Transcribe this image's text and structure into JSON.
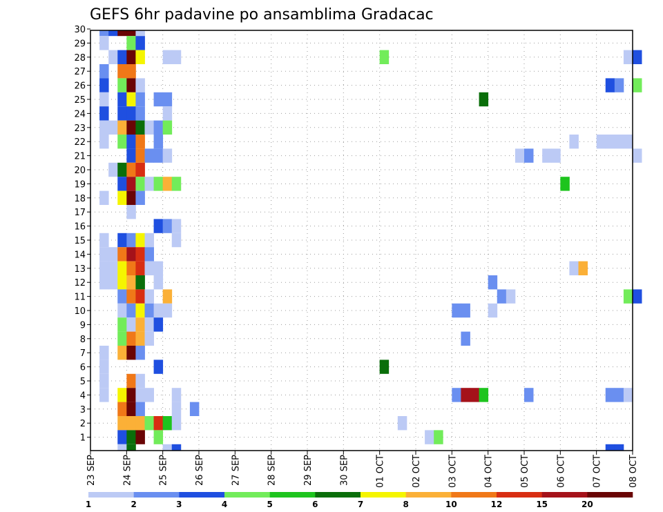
{
  "chart_data": {
    "type": "heatmap",
    "title": "GEFS 6hr padavine po ansamblima Gradacac",
    "xlabel": "",
    "ylabel": "",
    "x_ticks": [
      "23 SEP",
      "24 SEP",
      "25 SEP",
      "26 SEP",
      "27 SEP",
      "28 SEP",
      "29 SEP",
      "30 SEP",
      "01 OCT",
      "02 OCT",
      "03 OCT",
      "04 OCT",
      "05 OCT",
      "06 OCT",
      "07 OCT",
      "08 OCT"
    ],
    "y_ticks": [
      1,
      2,
      3,
      4,
      5,
      6,
      7,
      8,
      9,
      10,
      11,
      12,
      13,
      14,
      15,
      16,
      17,
      18,
      19,
      20,
      21,
      22,
      23,
      24,
      25,
      26,
      27,
      28,
      29,
      30
    ],
    "grid": true,
    "colorbar": {
      "levels": [
        "1",
        "2",
        "3",
        "4",
        "5",
        "6",
        "7",
        "8",
        "10",
        "12",
        "15",
        "20"
      ],
      "colors": [
        "#bccaf5",
        "#6a8ff0",
        "#1f4fe0",
        "#72ec5a",
        "#1ec41e",
        "#0a6e0a",
        "#f5f500",
        "#fbb037",
        "#f07818",
        "#d82e12",
        "#a5121a",
        "#6a0505"
      ]
    },
    "cells": [
      [
        30,
        0.25,
        2
      ],
      [
        30,
        0.5,
        3
      ],
      [
        30,
        0.75,
        12
      ],
      [
        30,
        1.0,
        12
      ],
      [
        30,
        1.25,
        1
      ],
      [
        29,
        0.25,
        1
      ],
      [
        29,
        1.0,
        4
      ],
      [
        29,
        1.25,
        3
      ],
      [
        28,
        0.5,
        1
      ],
      [
        28,
        0.75,
        3
      ],
      [
        28,
        1.0,
        12
      ],
      [
        28,
        1.25,
        7
      ],
      [
        28,
        2.0,
        1
      ],
      [
        28,
        2.25,
        1
      ],
      [
        28,
        8.0,
        4
      ],
      [
        28,
        14.75,
        1
      ],
      [
        28,
        15.0,
        3
      ],
      [
        27,
        0.25,
        2
      ],
      [
        27,
        0.75,
        9
      ],
      [
        27,
        1.0,
        9
      ],
      [
        26,
        0.25,
        3
      ],
      [
        26,
        0.75,
        4
      ],
      [
        26,
        1.0,
        12
      ],
      [
        26,
        1.25,
        1
      ],
      [
        26,
        14.25,
        3
      ],
      [
        26,
        14.5,
        2
      ],
      [
        26,
        15.0,
        4
      ],
      [
        25,
        0.25,
        1
      ],
      [
        25,
        0.75,
        3
      ],
      [
        25,
        1.0,
        7
      ],
      [
        25,
        1.25,
        2
      ],
      [
        25,
        1.75,
        2
      ],
      [
        25,
        2.0,
        2
      ],
      [
        25,
        10.75,
        6
      ],
      [
        24,
        0.25,
        3
      ],
      [
        24,
        0.75,
        3
      ],
      [
        24,
        1.0,
        3
      ],
      [
        24,
        1.25,
        2
      ],
      [
        24,
        2.0,
        1
      ],
      [
        23,
        0.25,
        1
      ],
      [
        23,
        0.5,
        1
      ],
      [
        23,
        0.75,
        8
      ],
      [
        23,
        1.0,
        12
      ],
      [
        23,
        1.25,
        6
      ],
      [
        23,
        1.5,
        1
      ],
      [
        23,
        1.75,
        2
      ],
      [
        23,
        2.0,
        4
      ],
      [
        22,
        0.25,
        1
      ],
      [
        22,
        0.75,
        4
      ],
      [
        22,
        1.0,
        3
      ],
      [
        22,
        1.25,
        9
      ],
      [
        22,
        1.75,
        2
      ],
      [
        22,
        13.25,
        1
      ],
      [
        22,
        14.0,
        1
      ],
      [
        22,
        14.25,
        1
      ],
      [
        22,
        14.5,
        1
      ],
      [
        22,
        14.75,
        1
      ],
      [
        21,
        1.0,
        3
      ],
      [
        21,
        1.25,
        9
      ],
      [
        21,
        1.5,
        2
      ],
      [
        21,
        1.75,
        2
      ],
      [
        21,
        2.0,
        1
      ],
      [
        21,
        11.75,
        1
      ],
      [
        21,
        12.0,
        2
      ],
      [
        21,
        12.5,
        1
      ],
      [
        21,
        12.75,
        1
      ],
      [
        21,
        15.0,
        1
      ],
      [
        20,
        0.5,
        1
      ],
      [
        20,
        0.75,
        6
      ],
      [
        20,
        1.0,
        9
      ],
      [
        20,
        1.25,
        10
      ],
      [
        19,
        0.75,
        3
      ],
      [
        19,
        1.0,
        11
      ],
      [
        19,
        1.25,
        4
      ],
      [
        19,
        1.5,
        1
      ],
      [
        19,
        1.75,
        4
      ],
      [
        19,
        2.0,
        8
      ],
      [
        19,
        2.25,
        4
      ],
      [
        19,
        13.0,
        5
      ],
      [
        18,
        0.25,
        1
      ],
      [
        18,
        0.75,
        7
      ],
      [
        18,
        1.0,
        12
      ],
      [
        18,
        1.25,
        2
      ],
      [
        17,
        1.0,
        1
      ],
      [
        16,
        1.75,
        3
      ],
      [
        16,
        2.0,
        2
      ],
      [
        16,
        2.25,
        1
      ],
      [
        15,
        0.25,
        1
      ],
      [
        15,
        0.75,
        3
      ],
      [
        15,
        1.0,
        2
      ],
      [
        15,
        1.25,
        7
      ],
      [
        15,
        1.5,
        1
      ],
      [
        15,
        2.25,
        1
      ],
      [
        14,
        0.25,
        1
      ],
      [
        14,
        0.5,
        1
      ],
      [
        14,
        0.75,
        9
      ],
      [
        14,
        1.0,
        11
      ],
      [
        14,
        1.25,
        10
      ],
      [
        14,
        1.5,
        2
      ],
      [
        13,
        0.25,
        1
      ],
      [
        13,
        0.5,
        1
      ],
      [
        13,
        0.75,
        7
      ],
      [
        13,
        1.0,
        9
      ],
      [
        13,
        1.25,
        10
      ],
      [
        13,
        1.5,
        1
      ],
      [
        13,
        1.75,
        1
      ],
      [
        13,
        13.25,
        1
      ],
      [
        13,
        13.5,
        8
      ],
      [
        12,
        0.25,
        1
      ],
      [
        12,
        0.5,
        1
      ],
      [
        12,
        0.75,
        7
      ],
      [
        12,
        1.0,
        8
      ],
      [
        12,
        1.25,
        6
      ],
      [
        12,
        1.75,
        1
      ],
      [
        12,
        11.0,
        2
      ],
      [
        11,
        0.75,
        2
      ],
      [
        11,
        1.0,
        9
      ],
      [
        11,
        1.25,
        10
      ],
      [
        11,
        1.5,
        1
      ],
      [
        11,
        2.0,
        8
      ],
      [
        11,
        11.25,
        2
      ],
      [
        11,
        11.5,
        1
      ],
      [
        11,
        14.75,
        4
      ],
      [
        11,
        15.0,
        3
      ],
      [
        10,
        0.75,
        1
      ],
      [
        10,
        1.0,
        2
      ],
      [
        10,
        1.25,
        7
      ],
      [
        10,
        1.5,
        2
      ],
      [
        10,
        1.75,
        1
      ],
      [
        10,
        2.0,
        1
      ],
      [
        10,
        10.0,
        2
      ],
      [
        10,
        10.25,
        2
      ],
      [
        10,
        11.0,
        1
      ],
      [
        9,
        0.75,
        4
      ],
      [
        9,
        1.0,
        1
      ],
      [
        9,
        1.25,
        8
      ],
      [
        9,
        1.5,
        1
      ],
      [
        9,
        1.75,
        3
      ],
      [
        8,
        0.75,
        4
      ],
      [
        8,
        1.0,
        9
      ],
      [
        8,
        1.25,
        8
      ],
      [
        8,
        1.5,
        1
      ],
      [
        8,
        10.25,
        2
      ],
      [
        7,
        0.25,
        1
      ],
      [
        7,
        0.75,
        8
      ],
      [
        7,
        1.0,
        12
      ],
      [
        7,
        1.25,
        2
      ],
      [
        6,
        0.25,
        1
      ],
      [
        6,
        1.75,
        3
      ],
      [
        6,
        8.0,
        6
      ],
      [
        5,
        0.25,
        1
      ],
      [
        5,
        1.0,
        9
      ],
      [
        5,
        1.25,
        1
      ],
      [
        4,
        0.25,
        1
      ],
      [
        4,
        0.75,
        7
      ],
      [
        4,
        1.0,
        12
      ],
      [
        4,
        1.25,
        1
      ],
      [
        4,
        1.5,
        1
      ],
      [
        4,
        2.25,
        1
      ],
      [
        4,
        10.0,
        2
      ],
      [
        4,
        10.25,
        11
      ],
      [
        4,
        10.5,
        11
      ],
      [
        4,
        10.75,
        5
      ],
      [
        4,
        12.0,
        2
      ],
      [
        4,
        14.25,
        2
      ],
      [
        4,
        14.5,
        2
      ],
      [
        4,
        14.75,
        1
      ],
      [
        3,
        0.75,
        9
      ],
      [
        3,
        1.0,
        12
      ],
      [
        3,
        1.25,
        2
      ],
      [
        3,
        2.25,
        1
      ],
      [
        3,
        2.75,
        2
      ],
      [
        2,
        0.75,
        8
      ],
      [
        2,
        1.0,
        8
      ],
      [
        2,
        1.25,
        8
      ],
      [
        2,
        1.5,
        4
      ],
      [
        2,
        1.75,
        10
      ],
      [
        2,
        2.0,
        5
      ],
      [
        2,
        2.25,
        1
      ],
      [
        2,
        8.5,
        1
      ],
      [
        1,
        0.75,
        3
      ],
      [
        1,
        1.0,
        6
      ],
      [
        1,
        1.25,
        12
      ],
      [
        1,
        1.75,
        4
      ],
      [
        1,
        9.25,
        1
      ],
      [
        1,
        9.5,
        4
      ],
      [
        0,
        0.75,
        1
      ],
      [
        0,
        1.0,
        6
      ],
      [
        0,
        2.0,
        1
      ],
      [
        0,
        2.25,
        3
      ],
      [
        0,
        14.25,
        3
      ],
      [
        0,
        14.5,
        3
      ]
    ]
  }
}
